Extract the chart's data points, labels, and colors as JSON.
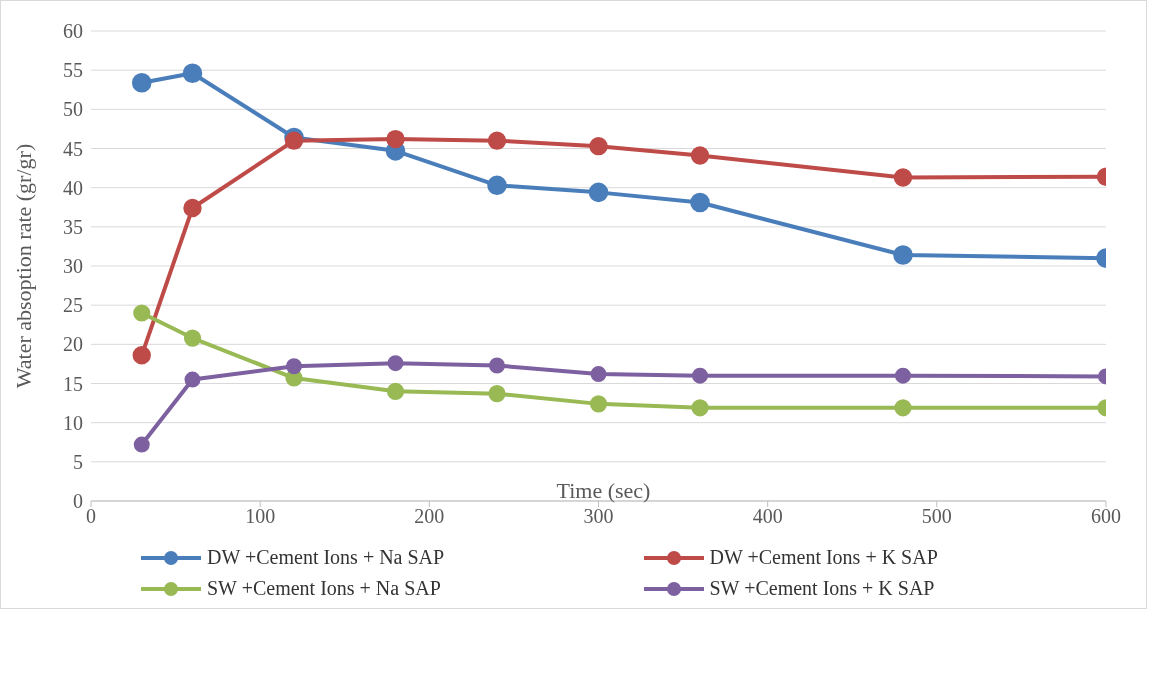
{
  "chart_data": {
    "type": "line",
    "xlabel": "Time (sec)",
    "ylabel": "Water absoption rate (gr/gr)",
    "x": [
      30,
      60,
      120,
      180,
      240,
      300,
      360,
      480,
      600
    ],
    "series": [
      {
        "name": "DW +Cement Ions + Na SAP",
        "color": "#4a7ebb",
        "values": [
          53.4,
          54.6,
          46.4,
          44.7,
          40.3,
          39.4,
          38.1,
          31.4,
          31.0
        ]
      },
      {
        "name": "DW +Cement Ions + K SAP",
        "color": "#be4b48",
        "values": [
          18.6,
          37.4,
          46.0,
          46.2,
          46.0,
          45.3,
          44.1,
          41.3,
          41.4
        ]
      },
      {
        "name": "SW +Cement Ions + Na SAP",
        "color": "#98b954",
        "values": [
          24.0,
          20.8,
          15.7,
          14.0,
          13.7,
          12.4,
          11.9,
          11.9,
          11.9
        ]
      },
      {
        "name": "SW +Cement Ions + K SAP",
        "color": "#7d60a0",
        "values": [
          7.2,
          15.5,
          17.2,
          17.6,
          17.3,
          16.2,
          16.0,
          16.0,
          15.9
        ]
      }
    ],
    "xlim": [
      0,
      600
    ],
    "xticks": [
      0,
      100,
      200,
      300,
      400,
      500,
      600
    ],
    "ylim": [
      0,
      60
    ],
    "yticks": [
      0,
      5,
      10,
      15,
      20,
      25,
      30,
      35,
      40,
      45,
      50,
      55,
      60
    ],
    "grid": "y",
    "legend": "bottom",
    "marker": "circle",
    "line_style": "solid"
  }
}
